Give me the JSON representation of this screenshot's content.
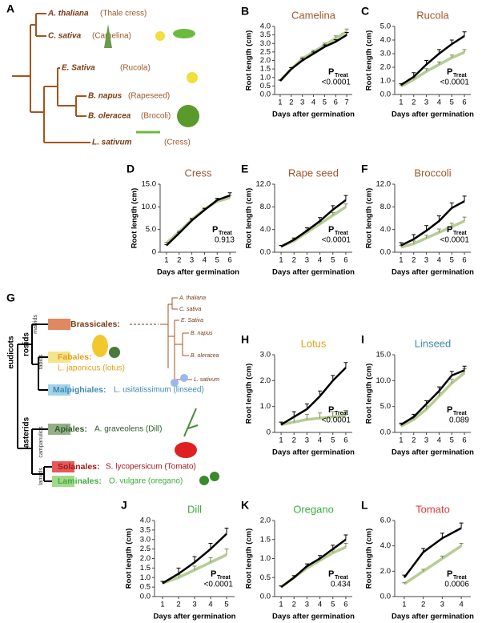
{
  "tree_a": {
    "panel": "A",
    "species": [
      {
        "name": "A. thaliana",
        "common": "(Thale cress)"
      },
      {
        "name": "C. sativa",
        "common": "(Camelina)"
      },
      {
        "name": "E. Sativa",
        "common": "(Rucola)"
      },
      {
        "name": "B. napus",
        "common": "(Rapeseed)"
      },
      {
        "name": "B. oleracea",
        "common": "(Brocoli)"
      },
      {
        "name": "L. sativum",
        "common": "(Cress)"
      }
    ]
  },
  "tree_g": {
    "panel": "G",
    "root": "eudicots",
    "clades": [
      "rosids",
      "asterids",
      "malvids",
      "fabids",
      "campanulids",
      "lamiids"
    ],
    "orders": [
      {
        "order": "Brassicales:",
        "species": ""
      },
      {
        "order": "Fabales:",
        "species": "L. japonicus (lotus)"
      },
      {
        "order": "Malpighiales:",
        "species": "L. usitatissimum (linseed)"
      },
      {
        "order": "Apiales:",
        "species": "A. graveolens (Dill)"
      },
      {
        "order": "Solanales:",
        "species": "S. lycopersicum (Tomato)"
      },
      {
        "order": "Laminales:",
        "species": "O. vulgare (oregano)"
      }
    ],
    "small_tree": [
      "A. thaliana",
      "C. sativa",
      "E. Sativa",
      "B. napus",
      "B. oleracea",
      "L. sativum"
    ]
  },
  "chart_data": [
    {
      "type": "line",
      "panel": "B",
      "title": "Camelina",
      "title_color": "#a0562c",
      "xlabel": "Days after germination",
      "ylabel": "Root length (cm)",
      "x": [
        1,
        2,
        3,
        4,
        5,
        6,
        7
      ],
      "xticks": [
        1,
        2,
        3,
        4,
        5,
        6,
        7
      ],
      "xlim": [
        0.5,
        7.5
      ],
      "ylim": [
        0,
        4
      ],
      "yticks": [
        {
          "value": 0,
          "label": "0.0"
        },
        0.5,
        {
          "value": 1,
          "label": "1.0"
        },
        1.5,
        {
          "value": 2,
          "label": "2.0"
        },
        2.5,
        {
          "value": 3,
          "label": "3.0"
        },
        3.5,
        {
          "value": 4,
          "label": "4.0"
        }
      ],
      "series": [
        {
          "color": "#b8cc94",
          "values": [
            0.8,
            1.5,
            2.1,
            2.5,
            2.9,
            3.3,
            3.7
          ],
          "errors": [
            0.05,
            0.08,
            0.1,
            0.1,
            0.12,
            0.15,
            0.15
          ]
        },
        {
          "color": "#000000",
          "values": [
            0.8,
            1.5,
            2.0,
            2.4,
            2.8,
            3.1,
            3.5
          ],
          "errors": [
            0.05,
            0.08,
            0.1,
            0.1,
            0.12,
            0.12,
            0.15
          ]
        }
      ],
      "p_label": "P",
      "p_subscript": "Treat",
      "p_value": "<0.0001"
    },
    {
      "type": "line",
      "panel": "C",
      "title": "Rucola",
      "title_color": "#a0562c",
      "xlabel": "Days after germination",
      "ylabel": "Root length (cm)",
      "x": [
        1,
        2,
        3,
        4,
        5,
        6
      ],
      "xticks": [
        1,
        2,
        3,
        4,
        5,
        6
      ],
      "xlim": [
        0.5,
        6.5
      ],
      "ylim": [
        0,
        5
      ],
      "yticks": [
        {
          "value": 0,
          "label": "0.0"
        },
        {
          "value": 1,
          "label": "1.0"
        },
        {
          "value": 2,
          "label": "2.0"
        },
        {
          "value": 3,
          "label": "3.0"
        },
        {
          "value": 4,
          "label": "4.0"
        },
        {
          "value": 5,
          "label": "5.0"
        }
      ],
      "series": [
        {
          "color": "#b8cc94",
          "values": [
            0.6,
            1.1,
            1.7,
            2.2,
            2.7,
            3.1
          ],
          "errors": [
            0.1,
            0.15,
            0.2,
            0.2,
            0.2,
            0.2
          ]
        },
        {
          "color": "#000000",
          "values": [
            0.7,
            1.3,
            2.2,
            3.0,
            3.7,
            4.3
          ],
          "errors": [
            0.1,
            0.3,
            0.3,
            0.3,
            0.3,
            0.3
          ]
        }
      ],
      "p_label": "P",
      "p_subscript": "Treat",
      "p_value": "<0.0001"
    },
    {
      "type": "line",
      "panel": "D",
      "title": "Cress",
      "title_color": "#a0562c",
      "xlabel": "Days after germination",
      "ylabel": "Root length (cm)",
      "x": [
        1,
        2,
        3,
        4,
        5,
        6
      ],
      "xticks": [
        1,
        2,
        3,
        4,
        5,
        6
      ],
      "xlim": [
        0.5,
        6.5
      ],
      "ylim": [
        0,
        15
      ],
      "yticks": [
        0,
        {
          "value": 5,
          "label": "5.0"
        },
        {
          "value": 10,
          "label": "10.0"
        },
        {
          "value": 15,
          "label": "15.0"
        }
      ],
      "series": [
        {
          "color": "#b8cc94",
          "values": [
            2.0,
            4.5,
            7.2,
            9.5,
            11.2,
            12.0
          ],
          "errors": [
            0.2,
            0.2,
            0.3,
            0.3,
            0.4,
            0.5
          ]
        },
        {
          "color": "#000000",
          "values": [
            1.5,
            4.2,
            7.0,
            9.3,
            11.5,
            12.5
          ],
          "errors": [
            0.2,
            0.2,
            0.3,
            0.3,
            0.4,
            0.6
          ]
        }
      ],
      "p_label": "P",
      "p_subscript": "Treat",
      "p_value": "0.913"
    },
    {
      "type": "line",
      "panel": "E",
      "title": "Rape seed",
      "title_color": "#a0562c",
      "xlabel": "Days after germination",
      "ylabel": "Root length (cm)",
      "x": [
        1,
        2,
        3,
        4,
        5,
        6
      ],
      "xticks": [
        1,
        2,
        3,
        4,
        5,
        6
      ],
      "xlim": [
        0.5,
        6.5
      ],
      "ylim": [
        0,
        12
      ],
      "yticks": [
        {
          "value": 0,
          "label": "0.0"
        },
        {
          "value": 4,
          "label": "4.0"
        },
        {
          "value": 8,
          "label": "8.0"
        },
        {
          "value": 12,
          "label": "12.0"
        }
      ],
      "series": [
        {
          "color": "#b8cc94",
          "values": [
            1.0,
            2.0,
            3.5,
            5.0,
            6.5,
            8.0
          ],
          "errors": [
            0.2,
            0.3,
            0.4,
            0.4,
            0.5,
            0.5
          ]
        },
        {
          "color": "#000000",
          "values": [
            1.0,
            2.2,
            3.8,
            5.5,
            7.5,
            9.2
          ],
          "errors": [
            0.2,
            0.3,
            0.5,
            0.6,
            0.7,
            0.8
          ]
        }
      ],
      "p_label": "P",
      "p_subscript": "Treat",
      "p_value": "<0.0001"
    },
    {
      "type": "line",
      "panel": "F",
      "title": "Broccoli",
      "title_color": "#a0562c",
      "xlabel": "Days after germination",
      "ylabel": "Root length (cm)",
      "x": [
        1,
        2,
        3,
        4,
        5,
        6
      ],
      "xticks": [
        1,
        2,
        3,
        4,
        5,
        6
      ],
      "xlim": [
        0.5,
        6.5
      ],
      "ylim": [
        0,
        12
      ],
      "yticks": [
        {
          "value": 0,
          "label": "0.0"
        },
        {
          "value": 4,
          "label": "4.0"
        },
        {
          "value": 8,
          "label": "8.0"
        },
        {
          "value": 12,
          "label": "12.0"
        }
      ],
      "series": [
        {
          "color": "#b8cc94",
          "values": [
            0.9,
            1.5,
            2.5,
            3.5,
            4.5,
            5.5
          ],
          "errors": [
            0.3,
            0.5,
            0.5,
            0.6,
            0.6,
            0.7
          ]
        },
        {
          "color": "#000000",
          "values": [
            1.2,
            2.3,
            3.8,
            5.5,
            7.8,
            9.0
          ],
          "errors": [
            0.5,
            0.8,
            0.9,
            0.9,
            0.9,
            0.9
          ]
        }
      ],
      "p_label": "P",
      "p_subscript": "Treat",
      "p_value": "<0.0001"
    },
    {
      "type": "line",
      "panel": "H",
      "title": "Lotus",
      "title_color": "#e0a21a",
      "xlabel": "Days after germination",
      "ylabel": "Root length (cm)",
      "x": [
        1,
        2,
        3,
        4,
        5,
        6
      ],
      "xticks": [
        1,
        2,
        3,
        4,
        5,
        6
      ],
      "xlim": [
        0.5,
        6.5
      ],
      "ylim": [
        0,
        3
      ],
      "yticks": [
        0,
        {
          "value": 1,
          "label": "1.0"
        },
        {
          "value": 2,
          "label": "2.0"
        },
        {
          "value": 3,
          "label": "3.0"
        }
      ],
      "series": [
        {
          "color": "#b8cc94",
          "values": [
            0.3,
            0.4,
            0.5,
            0.55,
            0.6,
            0.65
          ],
          "errors": [
            0.1,
            0.2,
            0.2,
            0.2,
            0.2,
            0.2
          ]
        },
        {
          "color": "#000000",
          "values": [
            0.3,
            0.6,
            0.9,
            1.4,
            2.0,
            2.5
          ],
          "errors": [
            0.1,
            0.2,
            0.2,
            0.2,
            0.2,
            0.2
          ]
        }
      ],
      "p_label": "P",
      "p_subscript": "Treat",
      "p_value": "<0.0001"
    },
    {
      "type": "line",
      "panel": "I",
      "title": "Linseed",
      "title_color": "#3e8ab4",
      "xlabel": "Days after germination",
      "ylabel": "Root length (cm)",
      "x": [
        1,
        2,
        3,
        4,
        5,
        6
      ],
      "xticks": [
        1,
        2,
        3,
        4,
        5,
        6
      ],
      "xlim": [
        0.5,
        6.5
      ],
      "ylim": [
        0,
        15
      ],
      "yticks": [
        {
          "value": 0,
          "label": "0.0"
        },
        {
          "value": 5,
          "label": "5.0"
        },
        {
          "value": 10,
          "label": "10.0"
        },
        {
          "value": 15,
          "label": "15.0"
        }
      ],
      "series": [
        {
          "color": "#b8cc94",
          "values": [
            1.2,
            2.5,
            4.5,
            7.0,
            9.5,
            11.5
          ],
          "errors": [
            0.3,
            0.5,
            0.6,
            0.7,
            0.8,
            0.8
          ]
        },
        {
          "color": "#000000",
          "values": [
            1.5,
            3.0,
            5.5,
            8.0,
            11.0,
            12.0
          ],
          "errors": [
            0.3,
            0.5,
            0.6,
            0.8,
            0.8,
            0.8
          ]
        }
      ],
      "p_label": "P",
      "p_subscript": "Treat",
      "p_value": "0.089"
    },
    {
      "type": "line",
      "panel": "J",
      "title": "Dill",
      "title_color": "#3cae3c",
      "xlabel": "Days after germination",
      "ylabel": "Root length (cm)",
      "x": [
        1,
        2,
        3,
        4,
        5
      ],
      "xticks": [
        1,
        2,
        3,
        4,
        5
      ],
      "xlim": [
        0.5,
        5.5
      ],
      "ylim": [
        0,
        4
      ],
      "yticks": [
        {
          "value": 0,
          "label": "0.0"
        },
        0.5,
        {
          "value": 1,
          "label": "1.0"
        },
        1.5,
        {
          "value": 2,
          "label": "2.0"
        },
        2.5,
        {
          "value": 3,
          "label": "3.0"
        },
        3.5,
        {
          "value": 4,
          "label": "4.0"
        }
      ],
      "series": [
        {
          "color": "#b8cc94",
          "values": [
            0.7,
            1.0,
            1.4,
            1.8,
            2.2
          ],
          "errors": [
            0.1,
            0.15,
            0.2,
            0.25,
            0.3
          ]
        },
        {
          "color": "#000000",
          "values": [
            0.7,
            1.2,
            1.8,
            2.5,
            3.3
          ],
          "errors": [
            0.1,
            0.3,
            0.3,
            0.3,
            0.3
          ]
        }
      ],
      "p_label": "P",
      "p_subscript": "Treat",
      "p_value": "<0.0001"
    },
    {
      "type": "line",
      "panel": "K",
      "title": "Oregano",
      "title_color": "#3cae3c",
      "xlabel": "Days after germination",
      "ylabel": "Root length (cm)",
      "x": [
        1,
        2,
        3,
        4,
        5,
        6
      ],
      "xticks": [
        1,
        2,
        3,
        4,
        5,
        6
      ],
      "xlim": [
        0.5,
        6.5
      ],
      "ylim": [
        0,
        2
      ],
      "yticks": [
        {
          "value": 0,
          "label": "0.0"
        },
        0.5,
        {
          "value": 1,
          "label": "1.0"
        },
        1.5,
        {
          "value": 2,
          "label": "2.0"
        }
      ],
      "series": [
        {
          "color": "#b8cc94",
          "values": [
            0.25,
            0.5,
            0.75,
            0.95,
            1.15,
            1.3
          ],
          "errors": [
            0.03,
            0.05,
            0.05,
            0.06,
            0.08,
            0.1
          ]
        },
        {
          "color": "#000000",
          "values": [
            0.25,
            0.5,
            0.8,
            1.0,
            1.25,
            1.5
          ],
          "errors": [
            0.03,
            0.05,
            0.06,
            0.08,
            0.1,
            0.12
          ]
        }
      ],
      "p_label": "P",
      "p_subscript": "Treat",
      "p_value": "0.434"
    },
    {
      "type": "line",
      "panel": "L",
      "title": "Tomato",
      "title_color": "#e03a3a",
      "xlabel": "Days after germination",
      "ylabel": "Root length (cm)",
      "x": [
        1,
        2,
        3,
        4
      ],
      "xticks": [
        1,
        2,
        3,
        4
      ],
      "xlim": [
        0.5,
        4.5
      ],
      "ylim": [
        0,
        6
      ],
      "yticks": [
        {
          "value": 0,
          "label": "0.0"
        },
        {
          "value": 2,
          "label": "2.0"
        },
        {
          "value": 4,
          "label": "4.0"
        },
        {
          "value": 6,
          "label": "6.0"
        }
      ],
      "series": [
        {
          "color": "#b8cc94",
          "values": [
            1.0,
            2.0,
            3.0,
            4.0
          ],
          "errors": [
            0.1,
            0.15,
            0.2,
            0.2
          ]
        },
        {
          "color": "#000000",
          "values": [
            1.5,
            3.5,
            4.6,
            5.4
          ],
          "errors": [
            0.2,
            0.3,
            0.4,
            0.4
          ]
        }
      ],
      "p_label": "P",
      "p_subscript": "Treat",
      "p_value": "0.0006"
    }
  ]
}
